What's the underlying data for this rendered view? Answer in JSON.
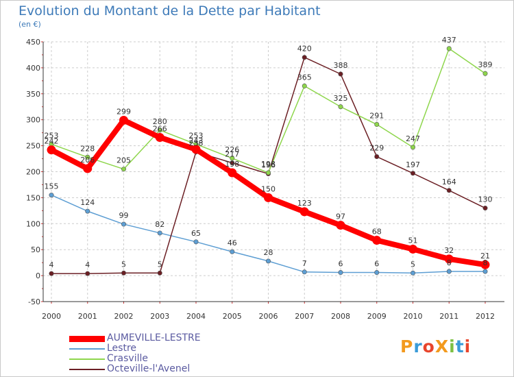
{
  "title": "Evolution du Montant de la Dette par Habitant",
  "unit_label": "(en €)",
  "logo_text": "ProXiti",
  "chart_data": {
    "type": "line",
    "title": "Evolution du Montant de la Dette par Habitant",
    "ylabel": "(en €)",
    "xlabel": "",
    "categories": [
      "2000",
      "2001",
      "2002",
      "2003",
      "2004",
      "2005",
      "2006",
      "2007",
      "2008",
      "2009",
      "2010",
      "2011",
      "2012"
    ],
    "ylim": [
      -50,
      450
    ],
    "yticks": [
      -50,
      0,
      50,
      100,
      150,
      200,
      250,
      300,
      350,
      400,
      450
    ],
    "grid": "horizontal dashed",
    "legend": "bottom-left",
    "series": [
      {
        "name": "AUMEVILLE-LESTRE",
        "color": "#ff0000",
        "values": [
          242,
          206,
          299,
          266,
          243,
          198,
          150,
          123,
          97,
          68,
          51,
          32,
          21
        ]
      },
      {
        "name": "Lestre",
        "color": "#5d9ed3",
        "values": [
          155,
          124,
          99,
          82,
          65,
          46,
          28,
          7,
          6,
          6,
          5,
          8,
          8
        ]
      },
      {
        "name": "Crasville",
        "color": "#8ed64c",
        "values": [
          253,
          228,
          205,
          280,
          253,
          226,
          198,
          365,
          325,
          291,
          247,
          437,
          389
        ]
      },
      {
        "name": "Octeville-l'Avenel",
        "color": "#6b1f24",
        "values": [
          4,
          4,
          5,
          5,
          238,
          217,
          196,
          420,
          388,
          229,
          197,
          164,
          130
        ]
      }
    ]
  }
}
